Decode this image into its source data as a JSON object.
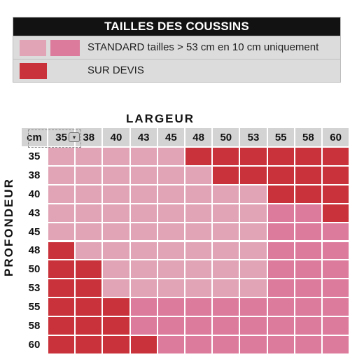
{
  "legend": {
    "title": "TAILLES DES COUSSINS",
    "standard_text": "STANDARD tailles > 53 cm en  10 cm uniquement",
    "devis_text": "SUR DEVIS"
  },
  "colors": {
    "standard_light": "#e1a4b7",
    "standard_dark": "#dc7b9c",
    "devis": "#c9323a",
    "header_bg": "#d3d3d3"
  },
  "grid": {
    "x_axis_label": "LARGEUR",
    "y_axis_label": "PROFONDEUR",
    "corner_label": "cm",
    "columns": [
      "35",
      "38",
      "40",
      "43",
      "45",
      "48",
      "50",
      "53",
      "55",
      "58",
      "60"
    ],
    "rows": [
      "35",
      "38",
      "40",
      "43",
      "45",
      "48",
      "50",
      "53",
      "55",
      "58",
      "60"
    ],
    "cells": [
      [
        "L",
        "L",
        "L",
        "L",
        "L",
        "R",
        "R",
        "R",
        "R",
        "R",
        "R"
      ],
      [
        "L",
        "L",
        "L",
        "L",
        "L",
        "L",
        "R",
        "R",
        "R",
        "R",
        "R"
      ],
      [
        "L",
        "L",
        "L",
        "L",
        "L",
        "L",
        "L",
        "L",
        "R",
        "R",
        "R"
      ],
      [
        "L",
        "L",
        "L",
        "L",
        "L",
        "L",
        "L",
        "L",
        "P",
        "P",
        "R"
      ],
      [
        "L",
        "L",
        "L",
        "L",
        "L",
        "L",
        "L",
        "L",
        "P",
        "P",
        "P"
      ],
      [
        "R",
        "L",
        "L",
        "L",
        "L",
        "L",
        "L",
        "L",
        "P",
        "P",
        "P"
      ],
      [
        "R",
        "R",
        "L",
        "L",
        "L",
        "L",
        "L",
        "L",
        "P",
        "P",
        "P"
      ],
      [
        "R",
        "R",
        "L",
        "L",
        "L",
        "L",
        "L",
        "L",
        "P",
        "P",
        "P"
      ],
      [
        "R",
        "R",
        "R",
        "P",
        "P",
        "P",
        "P",
        "P",
        "P",
        "P",
        "P"
      ],
      [
        "R",
        "R",
        "R",
        "P",
        "P",
        "P",
        "P",
        "P",
        "P",
        "P",
        "P"
      ],
      [
        "R",
        "R",
        "R",
        "R",
        "P",
        "P",
        "P",
        "P",
        "P",
        "P",
        "P"
      ]
    ],
    "cell_codes": {
      "L": "standard_light",
      "P": "standard_dark",
      "R": "devis"
    }
  }
}
